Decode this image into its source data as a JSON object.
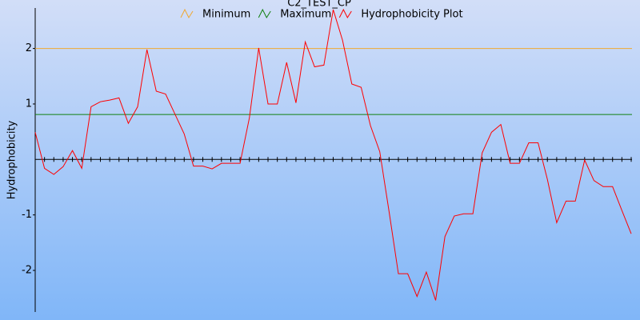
{
  "chart_data": {
    "type": "line",
    "title": "C2_TEST_CP",
    "y_label": "Hydrophobicity",
    "x": [
      1,
      2,
      3,
      4,
      5,
      6,
      7,
      8,
      9,
      10,
      11,
      12,
      13,
      14,
      15,
      16,
      17,
      18,
      19,
      20,
      21,
      22,
      23,
      24,
      25,
      26,
      27,
      28,
      29,
      30,
      31,
      32,
      33,
      34,
      35,
      36,
      37,
      38,
      39,
      40,
      41,
      42,
      43,
      44,
      45,
      46,
      47,
      48,
      49,
      50,
      51,
      52,
      53,
      54,
      55,
      56,
      57,
      58,
      59,
      60,
      61,
      62,
      63,
      64,
      65
    ],
    "xlim": [
      1,
      65
    ],
    "ylim": [
      -2.75,
      2.73
    ],
    "yticks": [
      -2,
      -1,
      1,
      2
    ],
    "reference_lines": [
      {
        "name": "Minimum",
        "color": "#f0a830",
        "value": 2.0
      },
      {
        "name": "Maximum",
        "color": "#108010",
        "value": 0.81
      }
    ],
    "series": [
      {
        "name": "Hydrophobicity Plot",
        "color": "#ff0000",
        "values": [
          0.49,
          -0.16,
          -0.27,
          -0.13,
          0.16,
          -0.16,
          0.95,
          1.04,
          1.07,
          1.11,
          0.65,
          0.95,
          1.98,
          1.23,
          1.18,
          0.82,
          0.46,
          -0.12,
          -0.12,
          -0.17,
          -0.07,
          -0.07,
          -0.07,
          0.75,
          2.01,
          1.0,
          1.0,
          1.75,
          1.02,
          2.12,
          1.67,
          1.7,
          2.7,
          2.15,
          1.36,
          1.3,
          0.61,
          0.14,
          -0.94,
          -2.06,
          -2.06,
          -2.47,
          -2.03,
          -2.54,
          -1.39,
          -1.02,
          -0.98,
          -0.98,
          0.12,
          0.49,
          0.63,
          -0.07,
          -0.07,
          0.3,
          0.3,
          -0.36,
          -1.14,
          -0.75,
          -0.75,
          -0.01,
          -0.38,
          -0.49,
          -0.49,
          -0.92,
          -1.34
        ]
      }
    ]
  }
}
